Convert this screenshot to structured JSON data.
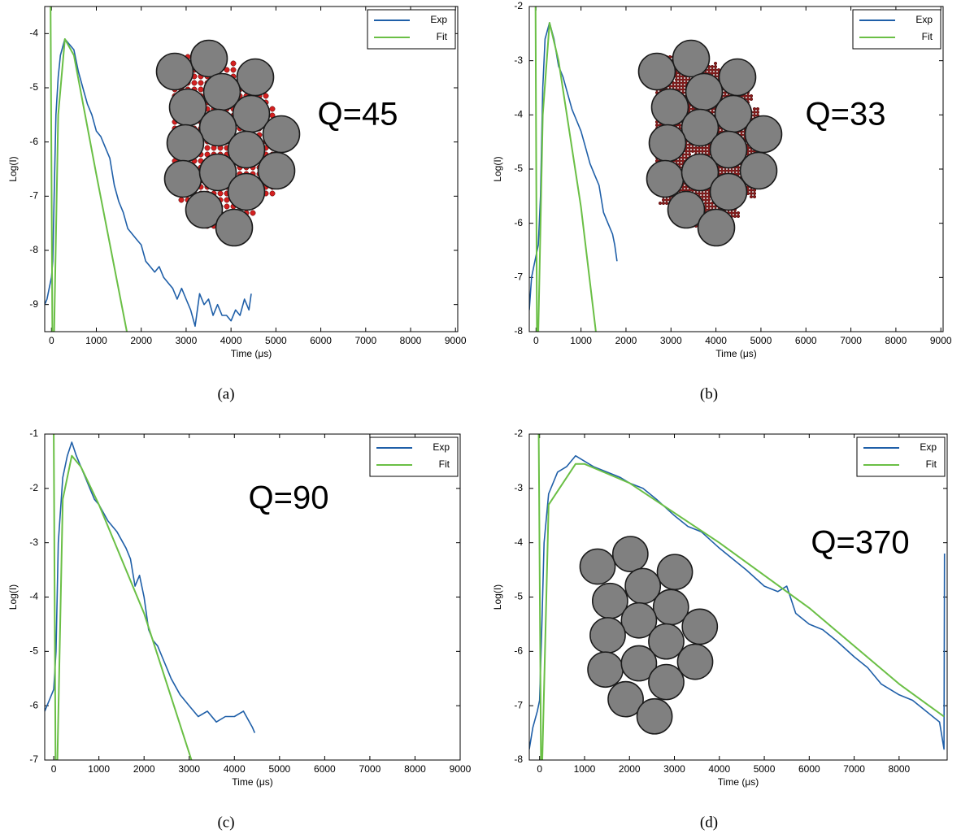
{
  "chart_data": [
    {
      "type": "line",
      "caption": "(a)",
      "annotation": "Q=45",
      "xlabel": "Time (μs)",
      "ylabel": "Log(I)",
      "xlim": [
        -150,
        9050
      ],
      "ylim": [
        -9.5,
        -3.5
      ],
      "xticks": [
        0,
        1000,
        2000,
        3000,
        4000,
        5000,
        6000,
        7000,
        8000,
        9000
      ],
      "yticks": [
        -9,
        -8,
        -7,
        -6,
        -5,
        -4
      ],
      "legend": "upper right",
      "series": [
        {
          "name": "Exp",
          "color": "#1f5fa8",
          "x": [
            -150,
            -100,
            -50,
            0,
            30,
            60,
            100,
            150,
            200,
            300,
            400,
            500,
            600,
            700,
            800,
            900,
            1000,
            1100,
            1200,
            1300,
            1400,
            1500,
            1600,
            1700,
            1800,
            1900,
            2000,
            2100,
            2200,
            2300,
            2400,
            2500,
            2600,
            2700,
            2800,
            2900,
            3000,
            3100,
            3200,
            3300,
            3400,
            3500,
            3600,
            3700,
            3800,
            3900,
            4000,
            4100,
            4200,
            4300,
            4400,
            4450
          ],
          "values": [
            -9.0,
            -8.9,
            -8.7,
            -8.5,
            -8.2,
            -7.0,
            -5.5,
            -4.8,
            -4.4,
            -4.1,
            -4.2,
            -4.3,
            -4.7,
            -5.0,
            -5.3,
            -5.5,
            -5.8,
            -5.9,
            -6.1,
            -6.3,
            -6.8,
            -7.1,
            -7.3,
            -7.6,
            -7.7,
            -7.8,
            -7.9,
            -8.2,
            -8.3,
            -8.4,
            -8.3,
            -8.5,
            -8.6,
            -8.7,
            -8.9,
            -8.7,
            -8.9,
            -9.1,
            -9.4,
            -8.8,
            -9.0,
            -8.9,
            -9.2,
            -9.0,
            -9.2,
            -9.2,
            -9.3,
            -9.1,
            -9.2,
            -8.9,
            -9.1,
            -8.8
          ]
        },
        {
          "name": "Fit",
          "color": "#6abf45",
          "x": [
            -20,
            20,
            60,
            150,
            300,
            500,
            1000,
            1680
          ],
          "values": [
            -3.5,
            -9.5,
            -9.5,
            -5.5,
            -4.1,
            -4.4,
            -6.6,
            -9.5
          ]
        }
      ]
    },
    {
      "type": "line",
      "caption": "(b)",
      "annotation": "Q=33",
      "xlabel": "Time (μs)",
      "ylabel": "Log(I)",
      "xlim": [
        -150,
        9050
      ],
      "ylim": [
        -8,
        -2
      ],
      "xticks": [
        0,
        1000,
        2000,
        3000,
        4000,
        5000,
        6000,
        7000,
        8000,
        9000
      ],
      "yticks": [
        -8,
        -7,
        -6,
        -5,
        -4,
        -3,
        -2
      ],
      "legend": "upper right",
      "series": [
        {
          "name": "Exp",
          "color": "#1f5fa8",
          "x": [
            -150,
            -100,
            -50,
            0,
            50,
            100,
            150,
            200,
            300,
            400,
            500,
            600,
            700,
            800,
            900,
            1000,
            1100,
            1200,
            1300,
            1400,
            1500,
            1600,
            1700,
            1750,
            1800
          ],
          "values": [
            -7.6,
            -7.0,
            -6.8,
            -6.6,
            -6.4,
            -5.5,
            -3.5,
            -2.6,
            -2.3,
            -2.6,
            -3.1,
            -3.3,
            -3.6,
            -3.9,
            -4.1,
            -4.3,
            -4.6,
            -4.9,
            -5.1,
            -5.3,
            -5.8,
            -6.0,
            -6.2,
            -6.4,
            -6.7
          ]
        },
        {
          "name": "Fit",
          "color": "#6abf45",
          "x": [
            -10,
            20,
            50,
            150,
            300,
            500,
            1000,
            1330
          ],
          "values": [
            -2,
            -8,
            -8,
            -4.0,
            -2.3,
            -3.0,
            -5.7,
            -8
          ]
        }
      ]
    },
    {
      "type": "line",
      "caption": "(c)",
      "annotation": "Q=90",
      "xlabel": "Time (μs)",
      "ylabel": "Log(I)",
      "xlim": [
        -200,
        9000
      ],
      "ylim": [
        -7,
        -1
      ],
      "xticks": [
        0,
        1000,
        2000,
        3000,
        4000,
        5000,
        6000,
        7000,
        8000,
        9000
      ],
      "yticks": [
        -7,
        -6,
        -5,
        -4,
        -3,
        -2,
        -1
      ],
      "legend": "upper right",
      "series": [
        {
          "name": "Exp",
          "color": "#1f5fa8",
          "x": [
            -200,
            -100,
            0,
            50,
            100,
            200,
            300,
            400,
            500,
            600,
            700,
            800,
            900,
            1000,
            1200,
            1400,
            1600,
            1700,
            1800,
            1900,
            2000,
            2100,
            2200,
            2300,
            2400,
            2500,
            2600,
            2800,
            3000,
            3200,
            3400,
            3600,
            3800,
            4000,
            4200,
            4400,
            4450
          ],
          "values": [
            -6.1,
            -5.9,
            -5.7,
            -5.0,
            -3.0,
            -1.8,
            -1.4,
            -1.15,
            -1.4,
            -1.6,
            -1.8,
            -2.0,
            -2.2,
            -2.3,
            -2.6,
            -2.8,
            -3.1,
            -3.3,
            -3.8,
            -3.6,
            -4.0,
            -4.6,
            -4.8,
            -4.9,
            -5.1,
            -5.3,
            -5.5,
            -5.8,
            -6.0,
            -6.2,
            -6.1,
            -6.3,
            -6.2,
            -6.2,
            -6.1,
            -6.4,
            -6.5
          ]
        },
        {
          "name": "Fit",
          "color": "#6abf45",
          "x": [
            0,
            40,
            80,
            200,
            400,
            600,
            1000,
            2000,
            3050
          ],
          "values": [
            -1,
            -7,
            -7,
            -2.2,
            -1.4,
            -1.6,
            -2.3,
            -4.3,
            -7
          ]
        }
      ]
    },
    {
      "type": "line",
      "caption": "(d)",
      "annotation": "Q=370",
      "xlabel": "Time (μs)",
      "ylabel": "Log(I)",
      "xlim": [
        -230,
        9070
      ],
      "ylim": [
        -8,
        -2
      ],
      "xticks": [
        0,
        1000,
        2000,
        3000,
        4000,
        5000,
        6000,
        7000,
        8000
      ],
      "yticks": [
        -8,
        -7,
        -6,
        -5,
        -4,
        -3,
        -2
      ],
      "legend": "upper right",
      "series": [
        {
          "name": "Exp",
          "color": "#1f5fa8",
          "x": [
            -230,
            -150,
            -50,
            0,
            50,
            100,
            200,
            400,
            600,
            800,
            1000,
            1200,
            1500,
            1800,
            2000,
            2300,
            2600,
            3000,
            3300,
            3600,
            4000,
            4300,
            4600,
            5000,
            5300,
            5500,
            5700,
            6000,
            6300,
            6600,
            7000,
            7300,
            7600,
            8000,
            8300,
            8600,
            8900,
            9000,
            9010
          ],
          "values": [
            -7.8,
            -7.4,
            -7.1,
            -6.9,
            -5.5,
            -4.0,
            -3.1,
            -2.7,
            -2.6,
            -2.4,
            -2.5,
            -2.6,
            -2.7,
            -2.8,
            -2.9,
            -3.0,
            -3.2,
            -3.5,
            -3.7,
            -3.8,
            -4.1,
            -4.3,
            -4.5,
            -4.8,
            -4.9,
            -4.8,
            -5.3,
            -5.5,
            -5.6,
            -5.8,
            -6.1,
            -6.3,
            -6.6,
            -6.8,
            -6.9,
            -7.1,
            -7.3,
            -7.8,
            -4.2
          ]
        },
        {
          "name": "Fit",
          "color": "#6abf45",
          "x": [
            -20,
            30,
            60,
            200,
            800,
            1000,
            2000,
            4000,
            6000,
            8000,
            9000
          ],
          "values": [
            -2,
            -8,
            -8,
            -3.3,
            -2.55,
            -2.55,
            -2.9,
            -4.0,
            -5.2,
            -6.6,
            -7.2
          ]
        }
      ]
    }
  ]
}
